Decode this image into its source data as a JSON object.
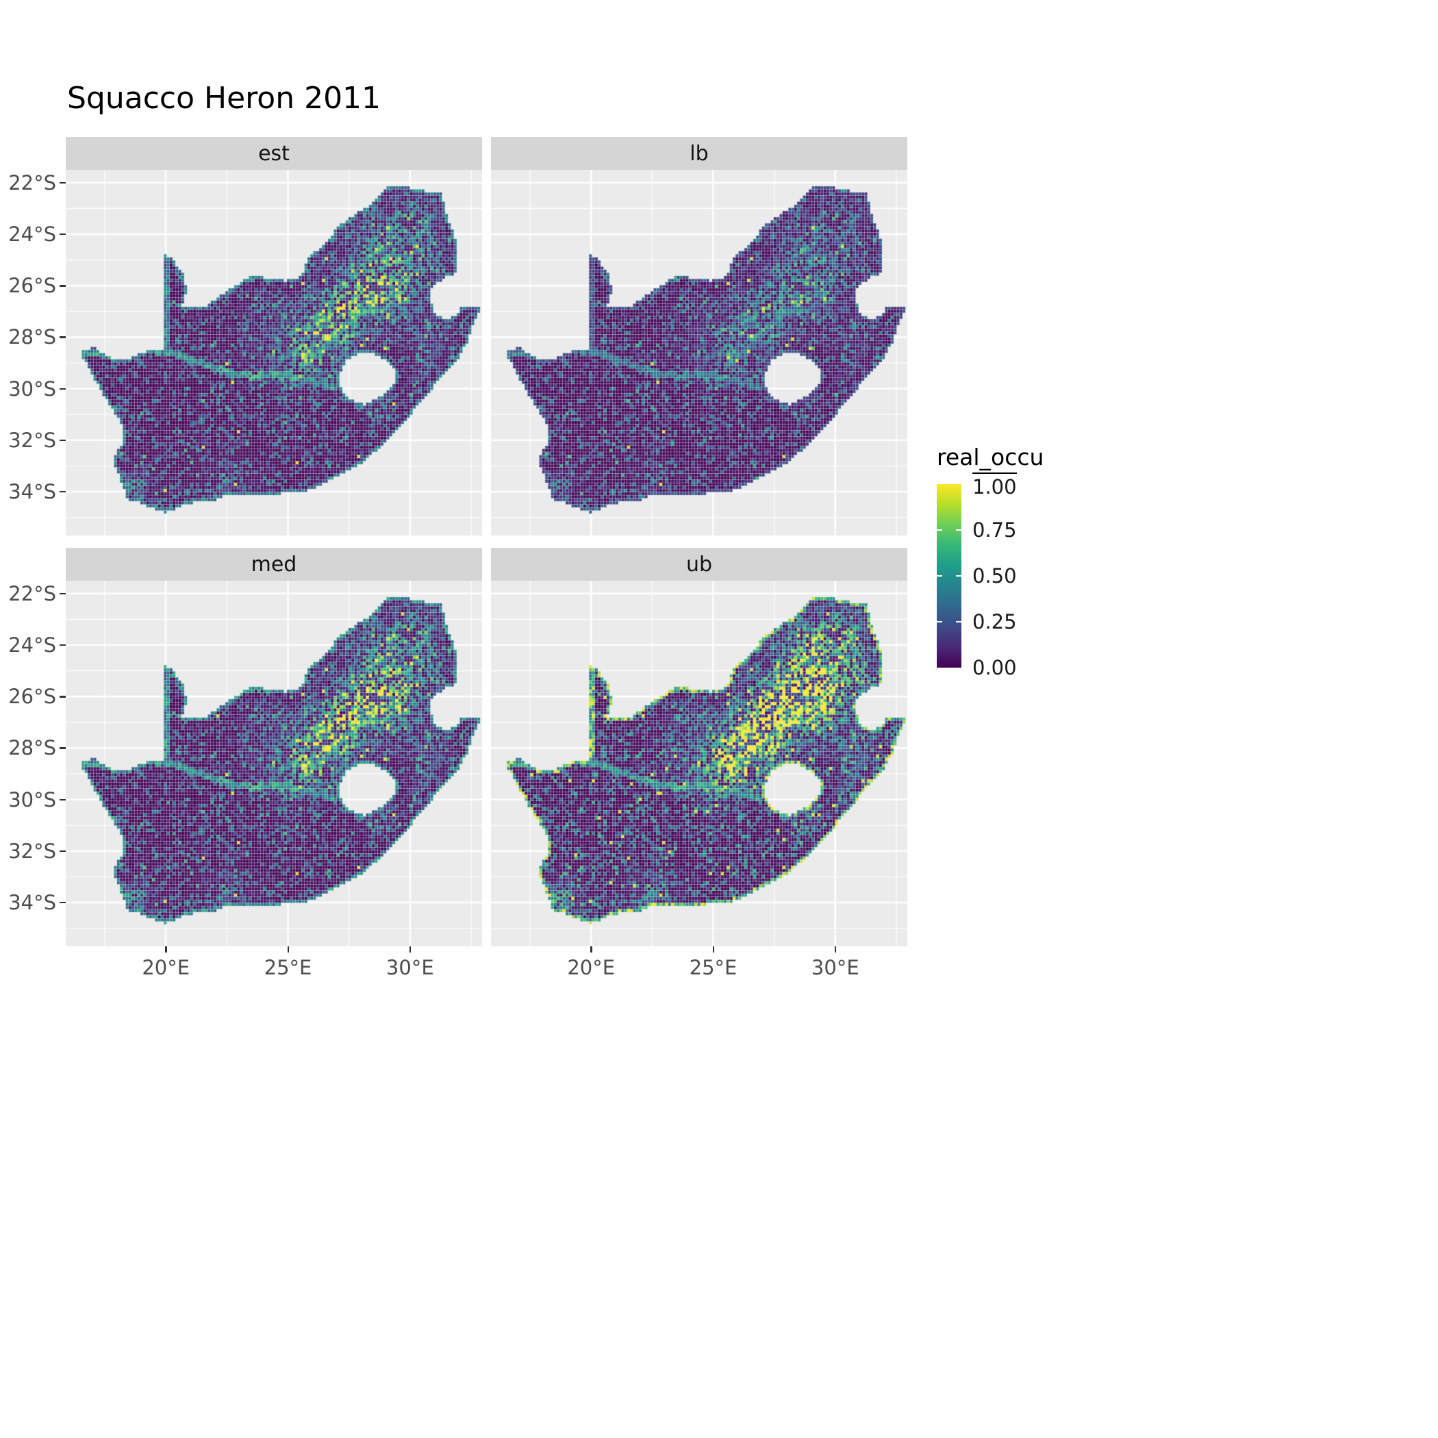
{
  "title": "Squacco Heron 2011",
  "styles": {
    "strip_bg": "#d5d5d5",
    "panel_bg": "#ebebeb",
    "grid_color": "#ffffff",
    "axis_text_color": "#4d4d4d",
    "title_color": "#000000"
  },
  "chart_data": {
    "type": "heatmap",
    "subtype": "faceted_raster_map",
    "title": "Squacco Heron 2011",
    "region": "South Africa",
    "facets": [
      "est",
      "lb",
      "med",
      "ub"
    ],
    "x_axis": {
      "tick_labels": [
        "20°E",
        "25°E",
        "30°E"
      ],
      "tick_values": [
        20,
        25,
        30
      ],
      "minor_ticks": [
        17.5,
        22.5,
        27.5,
        32.5
      ],
      "range": [
        15.9,
        32.95
      ]
    },
    "y_axis": {
      "tick_labels": [
        "22°S",
        "24°S",
        "26°S",
        "28°S",
        "30°S",
        "32°S",
        "34°S"
      ],
      "tick_values": [
        -22,
        -24,
        -26,
        -28,
        -30,
        -32,
        -34
      ],
      "minor_ticks": [
        -23,
        -25,
        -27,
        -29,
        -31,
        -33,
        -35
      ],
      "range": [
        -35.7,
        -21.5
      ]
    },
    "legend": {
      "title": "real_occu",
      "tick_labels": [
        "1.00",
        "0.75",
        "0.50",
        "0.25",
        "0.00"
      ],
      "tick_values": [
        1,
        0.75,
        0.5,
        0.25,
        0
      ],
      "range": [
        0,
        1
      ],
      "position": "right"
    },
    "colormap": {
      "name": "viridis",
      "colors": [
        "#440154",
        "#482878",
        "#3e4a89",
        "#31688e",
        "#26828e",
        "#1f9e89",
        "#35b779",
        "#6ece58",
        "#b5de2b",
        "#fde725"
      ]
    },
    "grid": true,
    "description": "Occupancy probability (real_occu) raster maps of South Africa for Squacco Heron 2011: estimate (est), lower bound (lb), median (med) and upper bound (ub). Values are mostly near zero (dark purple) with high-occupancy green/yellow cells concentrated over the Highveld around Gauteng and the Free State, along major rivers and the coastline; ub is brightest and most widespread, lb is darkest.",
    "raster_simulation": {
      "note": "procedural approximation of the raster speckle pattern visible in the screenshot",
      "cell_deg": 0.12,
      "facet_params": {
        "est": {
          "mul": 0.85,
          "edge": 0.55,
          "speckle": 0.965
        },
        "lb": {
          "mul": 0.5,
          "edge": 0.3,
          "speckle": 0.975
        },
        "med": {
          "mul": 1.0,
          "edge": 0.65,
          "speckle": 0.955
        },
        "ub": {
          "mul": 1.45,
          "edge": 1.0,
          "speckle": 0.9
        }
      },
      "hotspots": [
        [
          28.05,
          -26.15,
          0.95,
          1.0
        ],
        [
          26.9,
          -27.3,
          0.85,
          0.75
        ],
        [
          26.2,
          -28.4,
          0.8,
          0.8
        ],
        [
          29.8,
          -26.4,
          0.75,
          0.6
        ],
        [
          29.3,
          -24.9,
          0.85,
          0.5
        ],
        [
          30.4,
          -23.6,
          0.7,
          0.45
        ],
        [
          31.0,
          -25.1,
          0.55,
          0.4
        ],
        [
          28.9,
          -23.6,
          0.7,
          0.4
        ],
        [
          25.2,
          -29.2,
          0.6,
          0.4
        ],
        [
          30.7,
          -29.5,
          0.5,
          0.35
        ],
        [
          24.3,
          -27.9,
          0.9,
          0.3
        ],
        [
          18.7,
          -33.9,
          0.5,
          0.4
        ],
        [
          22.6,
          -33.9,
          0.7,
          0.25
        ],
        [
          28.6,
          -30.6,
          0.5,
          0.3
        ],
        [
          30.9,
          -28.1,
          0.5,
          0.35
        ]
      ],
      "rivers": [
        [
          [
            16.6,
            -28.55
          ],
          [
            17.9,
            -28.78
          ],
          [
            19.2,
            -28.5
          ],
          [
            20.3,
            -28.65
          ],
          [
            21.3,
            -28.95
          ],
          [
            22.5,
            -29.35
          ],
          [
            23.6,
            -29.55
          ],
          [
            24.7,
            -29.45
          ],
          [
            25.7,
            -29.65
          ],
          [
            26.9,
            -29.95
          ]
        ],
        [
          [
            25.6,
            -29.1
          ],
          [
            26.5,
            -28.45
          ],
          [
            27.3,
            -27.6
          ],
          [
            27.9,
            -26.95
          ],
          [
            28.55,
            -26.8
          ]
        ]
      ],
      "region_outline": [
        [
          16.45,
          -28.6
        ],
        [
          17.1,
          -28.4
        ],
        [
          17.6,
          -28.76
        ],
        [
          18.3,
          -28.9
        ],
        [
          19.3,
          -28.52
        ],
        [
          19.98,
          -28.43
        ],
        [
          19.98,
          -24.77
        ],
        [
          20.35,
          -25.05
        ],
        [
          20.75,
          -25.6
        ],
        [
          20.85,
          -26.2
        ],
        [
          20.65,
          -26.83
        ],
        [
          21.6,
          -26.85
        ],
        [
          22.2,
          -26.4
        ],
        [
          22.9,
          -26.0
        ],
        [
          23.5,
          -25.62
        ],
        [
          24.2,
          -25.7
        ],
        [
          24.9,
          -25.8
        ],
        [
          25.55,
          -25.65
        ],
        [
          25.9,
          -24.8
        ],
        [
          26.5,
          -24.45
        ],
        [
          27.1,
          -23.65
        ],
        [
          27.8,
          -23.2
        ],
        [
          28.3,
          -22.95
        ],
        [
          29.05,
          -22.2
        ],
        [
          29.7,
          -22.15
        ],
        [
          30.5,
          -22.3
        ],
        [
          31.3,
          -22.4
        ],
        [
          31.55,
          -23.5
        ],
        [
          31.8,
          -23.9
        ],
        [
          31.95,
          -24.6
        ],
        [
          31.98,
          -25.45
        ],
        [
          31.4,
          -25.72
        ],
        [
          30.95,
          -26.0
        ],
        [
          30.8,
          -26.45
        ],
        [
          30.95,
          -26.9
        ],
        [
          31.15,
          -27.2
        ],
        [
          31.6,
          -27.32
        ],
        [
          31.96,
          -27.05
        ],
        [
          32.12,
          -26.85
        ],
        [
          32.89,
          -26.86
        ],
        [
          32.55,
          -27.6
        ],
        [
          32.35,
          -28.2
        ],
        [
          32.05,
          -28.75
        ],
        [
          31.4,
          -29.4
        ],
        [
          31.0,
          -29.9
        ],
        [
          30.3,
          -30.7
        ],
        [
          29.55,
          -31.55
        ],
        [
          28.8,
          -32.25
        ],
        [
          28.0,
          -32.95
        ],
        [
          27.2,
          -33.3
        ],
        [
          26.4,
          -33.75
        ],
        [
          25.65,
          -34.0
        ],
        [
          25.0,
          -34.05
        ],
        [
          24.2,
          -34.15
        ],
        [
          23.3,
          -34.1
        ],
        [
          22.5,
          -34.15
        ],
        [
          21.8,
          -34.4
        ],
        [
          20.9,
          -34.45
        ],
        [
          20.0,
          -34.82
        ],
        [
          19.4,
          -34.62
        ],
        [
          18.85,
          -34.4
        ],
        [
          18.45,
          -34.32
        ],
        [
          18.32,
          -33.95
        ],
        [
          18.0,
          -33.2
        ],
        [
          17.85,
          -32.75
        ],
        [
          18.25,
          -32.05
        ],
        [
          18.3,
          -31.5
        ],
        [
          17.6,
          -30.5
        ],
        [
          17.05,
          -29.6
        ],
        [
          16.85,
          -29.2
        ]
      ],
      "lesotho_hole": [
        [
          27.05,
          -29.6
        ],
        [
          27.35,
          -28.95
        ],
        [
          27.75,
          -28.7
        ],
        [
          28.35,
          -28.6
        ],
        [
          29.0,
          -28.9
        ],
        [
          29.45,
          -29.25
        ],
        [
          29.35,
          -29.8
        ],
        [
          28.95,
          -30.2
        ],
        [
          28.15,
          -30.65
        ],
        [
          27.55,
          -30.4
        ],
        [
          27.2,
          -30.05
        ]
      ]
    }
  }
}
